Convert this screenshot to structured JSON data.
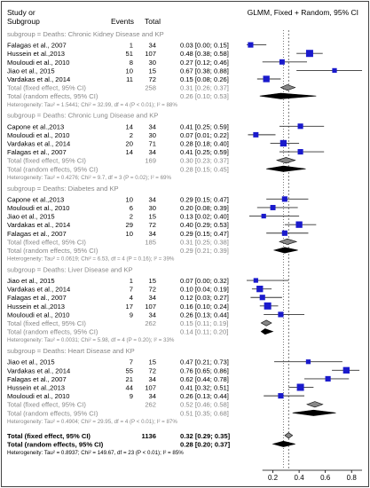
{
  "header": {
    "study_label_line1": "Study or",
    "study_label_line2": "Subgroup",
    "events_label": "Events",
    "total_label": "Total",
    "model_label": "GLMM, Fixed + Random, 95% CI"
  },
  "colors": {
    "square": "#1a1acc",
    "diamond": "#000000",
    "subgroup_text": "#888888",
    "total_text": "#000000",
    "border": "#444444",
    "line": "#333333"
  },
  "chart_data": {
    "type": "forest",
    "xaxis": {
      "ticks": [
        0.2,
        0.4,
        0.6,
        0.8
      ],
      "xlim": [
        0.0,
        0.9
      ],
      "ref_fixed": 0.32,
      "ref_random": 0.28
    },
    "subgroups": [
      {
        "label": "subgroup = Deaths: Chronic Kidney Disease and KP",
        "studies": [
          {
            "study": "Falagas et al., 2007",
            "events": "1",
            "total": "34",
            "est": 0.03,
            "lo": 0.0,
            "hi": 0.15,
            "ci_text": "0.03 [0.00; 0.15]"
          },
          {
            "study": "Hussein et al.,2013",
            "events": "51",
            "total": "107",
            "est": 0.48,
            "lo": 0.38,
            "hi": 0.58,
            "ci_text": "0.48 [0.38; 0.58]"
          },
          {
            "study": "Mouloudi et al., 2010",
            "events": "8",
            "total": "30",
            "est": 0.27,
            "lo": 0.12,
            "hi": 0.46,
            "ci_text": "0.27 [0.12; 0.46]"
          },
          {
            "study": "Jiao et al., 2015",
            "events": "10",
            "total": "15",
            "est": 0.67,
            "lo": 0.38,
            "hi": 0.88,
            "ci_text": "0.67 [0.38; 0.88]"
          },
          {
            "study": "Vardakas et al., 2014",
            "events": "11",
            "total": "72",
            "est": 0.15,
            "lo": 0.08,
            "hi": 0.26,
            "ci_text": "0.15 [0.08; 0.26]"
          }
        ],
        "fixed": {
          "label": "Total (fixed effect, 95% CI)",
          "total": "258",
          "est": 0.31,
          "lo": 0.26,
          "hi": 0.37,
          "ci_text": "0.31 [0.26; 0.37]"
        },
        "random": {
          "label": "Total (random effects, 95% CI)",
          "est": 0.26,
          "lo": 0.1,
          "hi": 0.53,
          "ci_text": "0.26 [0.10; 0.53]"
        },
        "heterogeneity": "Heterogeneity: Tau² = 1.5441; Chi² = 32.99, df = 4 (P < 0.01); I² = 88%"
      },
      {
        "label": "subgroup = Deaths: Chronic Lung Disease and KP",
        "studies": [
          {
            "study": "Capone et al.,2013",
            "events": "14",
            "total": "34",
            "est": 0.41,
            "lo": 0.25,
            "hi": 0.59,
            "ci_text": "0.41 [0.25; 0.59]"
          },
          {
            "study": "Mouloudi et al., 2010",
            "events": "2",
            "total": "30",
            "est": 0.07,
            "lo": 0.01,
            "hi": 0.22,
            "ci_text": "0.07 [0.01; 0.22]"
          },
          {
            "study": "Vardakas et al., 2014",
            "events": "20",
            "total": "71",
            "est": 0.28,
            "lo": 0.18,
            "hi": 0.4,
            "ci_text": "0.28 [0.18; 0.40]"
          },
          {
            "study": "Falagas et al., 2007",
            "events": "14",
            "total": "34",
            "est": 0.41,
            "lo": 0.25,
            "hi": 0.59,
            "ci_text": "0.41 [0.25; 0.59]"
          }
        ],
        "fixed": {
          "label": "Total (fixed effect, 95% CI)",
          "total": "169",
          "est": 0.3,
          "lo": 0.23,
          "hi": 0.37,
          "ci_text": "0.30 [0.23; 0.37]"
        },
        "random": {
          "label": "Total (random effects, 95% CI)",
          "est": 0.28,
          "lo": 0.15,
          "hi": 0.45,
          "ci_text": "0.28 [0.15; 0.45]"
        },
        "heterogeneity": "Heterogeneity: Tau² = 0.4276; Chi² = 9.7, df = 3 (P = 0.02); I² = 69%"
      },
      {
        "label": "subgroup = Deaths: Diabetes and KP",
        "studies": [
          {
            "study": "Capone et al.,2013",
            "events": "10",
            "total": "34",
            "est": 0.29,
            "lo": 0.15,
            "hi": 0.47,
            "ci_text": "0.29 [0.15; 0.47]"
          },
          {
            "study": "Mouloudi et al., 2010",
            "events": "6",
            "total": "30",
            "est": 0.2,
            "lo": 0.08,
            "hi": 0.39,
            "ci_text": "0.20 [0.08; 0.39]"
          },
          {
            "study": "Jiao et al., 2015",
            "events": "2",
            "total": "15",
            "est": 0.13,
            "lo": 0.02,
            "hi": 0.4,
            "ci_text": "0.13 [0.02; 0.40]"
          },
          {
            "study": "Vardakas et al., 2014",
            "events": "29",
            "total": "72",
            "est": 0.4,
            "lo": 0.29,
            "hi": 0.53,
            "ci_text": "0.40 [0.29; 0.53]"
          },
          {
            "study": "Falagas et al., 2007",
            "events": "10",
            "total": "34",
            "est": 0.29,
            "lo": 0.15,
            "hi": 0.47,
            "ci_text": "0.29 [0.15; 0.47]"
          }
        ],
        "fixed": {
          "label": "Total (fixed effect, 95% CI)",
          "total": "185",
          "est": 0.31,
          "lo": 0.25,
          "hi": 0.38,
          "ci_text": "0.31 [0.25; 0.38]"
        },
        "random": {
          "label": "Total (random effects, 95% CI)",
          "est": 0.29,
          "lo": 0.21,
          "hi": 0.39,
          "ci_text": "0.29 [0.21; 0.39]"
        },
        "heterogeneity": "Heterogeneity: Tau² = 0.0619; Chi² = 6.53, df = 4 (P = 0.16); I² = 39%"
      },
      {
        "label": "subgroup = Deaths: Liver Disease and KP",
        "studies": [
          {
            "study": "Jiao et al., 2015",
            "events": "1",
            "total": "15",
            "est": 0.07,
            "lo": 0.0,
            "hi": 0.32,
            "ci_text": "0.07 [0.00; 0.32]"
          },
          {
            "study": "Vardakas et al., 2014",
            "events": "7",
            "total": "72",
            "est": 0.1,
            "lo": 0.04,
            "hi": 0.19,
            "ci_text": "0.10 [0.04; 0.19]"
          },
          {
            "study": "Falagas et al., 2007",
            "events": "4",
            "total": "34",
            "est": 0.12,
            "lo": 0.03,
            "hi": 0.27,
            "ci_text": "0.12 [0.03; 0.27]"
          },
          {
            "study": "Hussein et al.,2013",
            "events": "17",
            "total": "107",
            "est": 0.16,
            "lo": 0.1,
            "hi": 0.24,
            "ci_text": "0.16 [0.10; 0.24]"
          },
          {
            "study": "Mouloudi et al., 2010",
            "events": "9",
            "total": "34",
            "est": 0.26,
            "lo": 0.13,
            "hi": 0.44,
            "ci_text": "0.26 [0.13; 0.44]"
          }
        ],
        "fixed": {
          "label": "Total (fixed effect, 95% CI)",
          "total": "262",
          "est": 0.15,
          "lo": 0.11,
          "hi": 0.19,
          "ci_text": "0.15 [0.11; 0.19]"
        },
        "random": {
          "label": "Total (random effects, 95% CI)",
          "est": 0.14,
          "lo": 0.11,
          "hi": 0.2,
          "ci_text": "0.14 [0.11; 0.20]"
        },
        "heterogeneity": "Heterogeneity: Tau² = 0.0031; Chi² = 5.98, df = 4 (P = 0.20); I² = 33%"
      },
      {
        "label": "subgroup = Deaths: Heart Disease and KP",
        "studies": [
          {
            "study": "Jiao et al., 2015",
            "events": "7",
            "total": "15",
            "est": 0.47,
            "lo": 0.21,
            "hi": 0.73,
            "ci_text": "0.47 [0.21; 0.73]"
          },
          {
            "study": "Vardakas et al., 2014",
            "events": "55",
            "total": "72",
            "est": 0.76,
            "lo": 0.65,
            "hi": 0.86,
            "ci_text": "0.76 [0.65; 0.86]"
          },
          {
            "study": "Falagas et al., 2007",
            "events": "21",
            "total": "34",
            "est": 0.62,
            "lo": 0.44,
            "hi": 0.78,
            "ci_text": "0.62 [0.44; 0.78]"
          },
          {
            "study": "Hussein et al.,2013",
            "events": "44",
            "total": "107",
            "est": 0.41,
            "lo": 0.32,
            "hi": 0.51,
            "ci_text": "0.41 [0.32; 0.51]"
          },
          {
            "study": "Mouloudi et al., 2010",
            "events": "9",
            "total": "34",
            "est": 0.26,
            "lo": 0.13,
            "hi": 0.44,
            "ci_text": "0.26 [0.13; 0.44]"
          }
        ],
        "fixed": {
          "label": "Total (fixed effect, 95% CI)",
          "total": "262",
          "est": 0.52,
          "lo": 0.46,
          "hi": 0.58,
          "ci_text": "0.52 [0.46; 0.58]"
        },
        "random": {
          "label": "Total (random effects, 95% CI)",
          "est": 0.51,
          "lo": 0.35,
          "hi": 0.68,
          "ci_text": "0.51 [0.35; 0.68]"
        },
        "heterogeneity": "Heterogeneity: Tau² = 0.4904; Chi² = 29.95, df = 4 (P < 0.01); I² = 87%"
      }
    ],
    "overall": {
      "fixed": {
        "label": "Total (fixed effect, 95% CI)",
        "total": "1136",
        "est": 0.32,
        "lo": 0.29,
        "hi": 0.35,
        "ci_text": "0.32 [0.29; 0.35]"
      },
      "random": {
        "label": "Total (random effects, 95% CI)",
        "est": 0.28,
        "lo": 0.2,
        "hi": 0.37,
        "ci_text": "0.28 [0.20; 0.37]"
      },
      "heterogeneity": "Heterogeneity: Tau² = 0.8937; Chi² = 149.67, df = 23 (P < 0.01); I² = 85%"
    }
  }
}
